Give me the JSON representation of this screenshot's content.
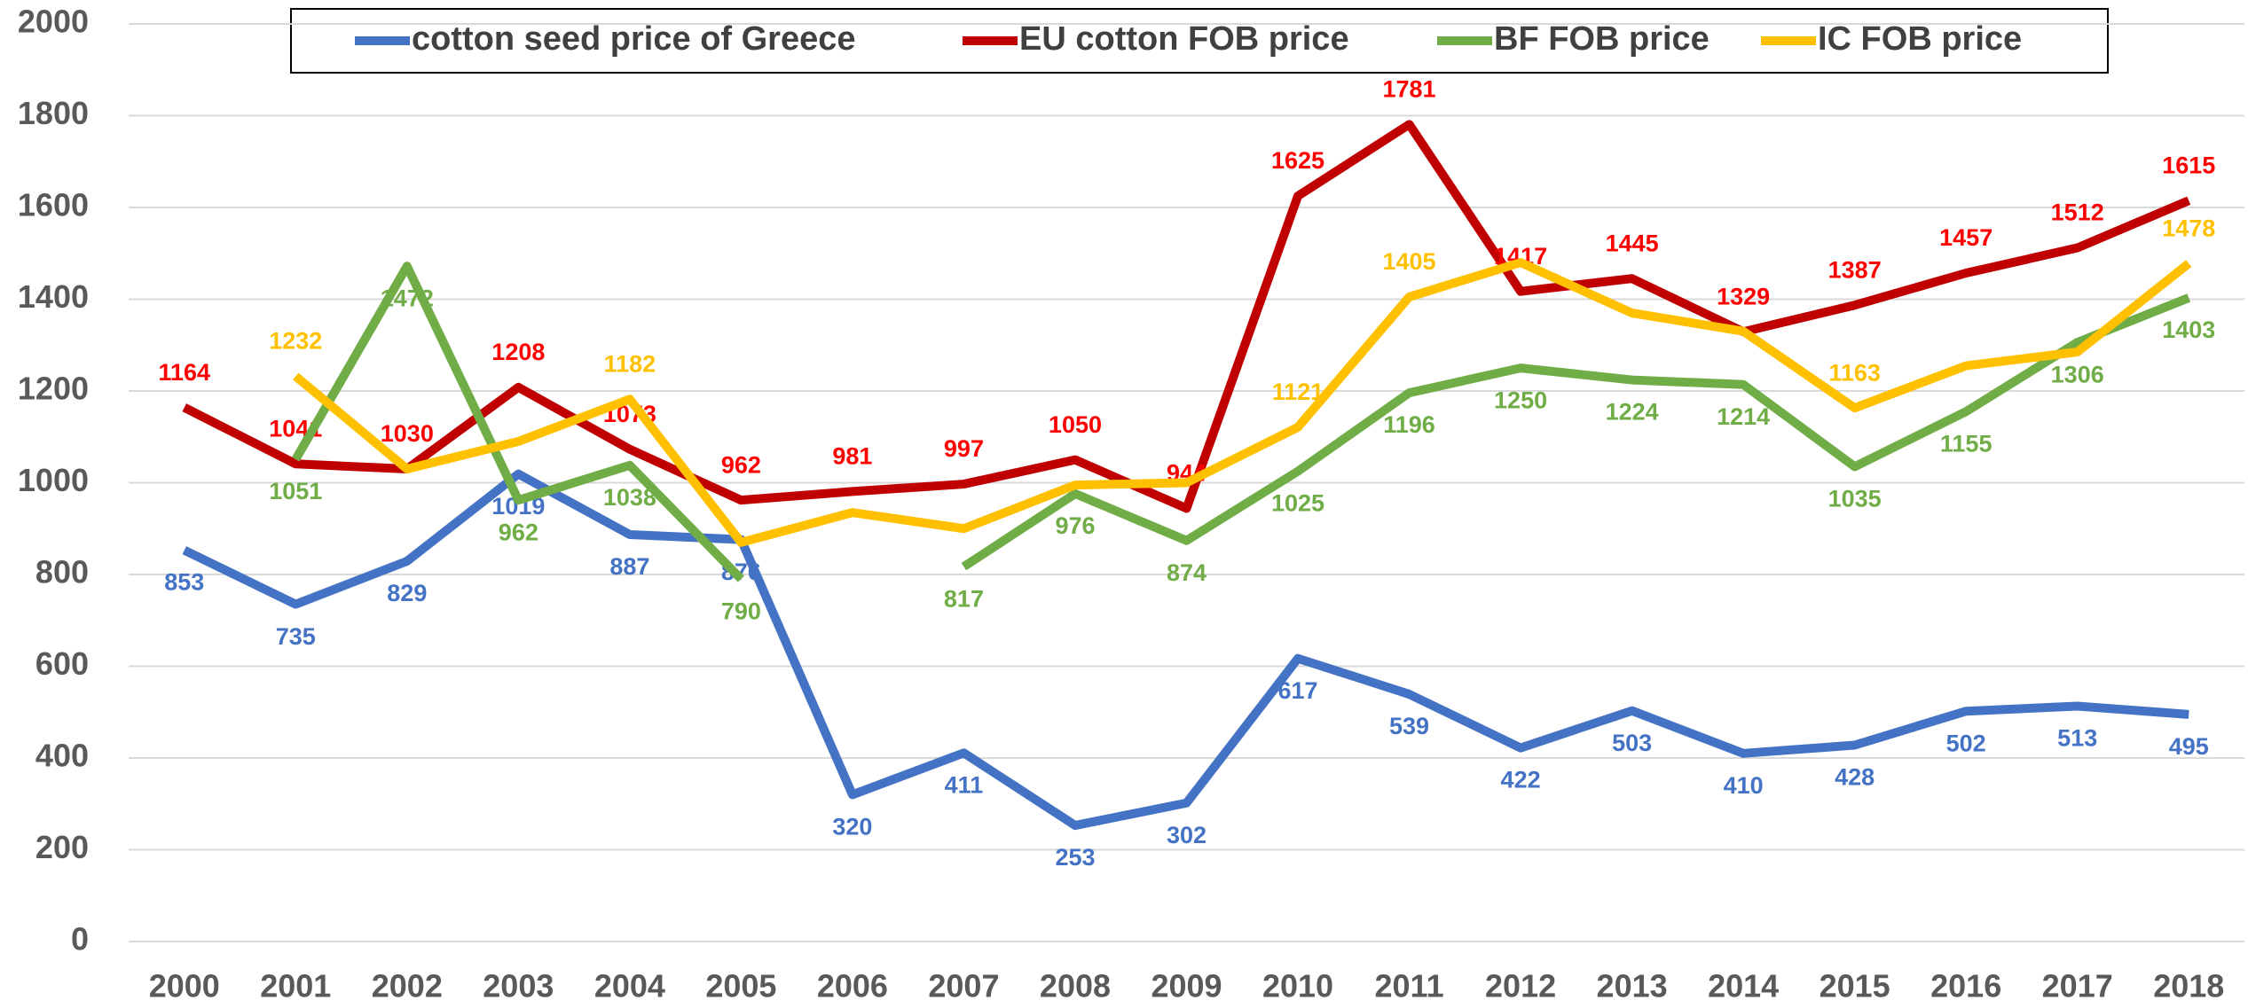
{
  "chart_data": {
    "type": "line",
    "categories": [
      "2000",
      "2001",
      "2002",
      "2003",
      "2004",
      "2005",
      "2006",
      "2007",
      "2008",
      "2009",
      "2010",
      "2011",
      "2012",
      "2013",
      "2014",
      "2015",
      "2016",
      "2017",
      "2018"
    ],
    "series": [
      {
        "name": "cotton seed price of Greece",
        "color": "#4472c4",
        "values": [
          853,
          735,
          829,
          1019,
          887,
          876,
          320,
          411,
          253,
          302,
          617,
          539,
          422,
          503,
          410,
          428,
          502,
          513,
          495
        ]
      },
      {
        "name": "EU cotton FOB price",
        "color": "#c00000",
        "label_color": "#ff0000",
        "values": [
          1164,
          1041,
          1030,
          1208,
          1073,
          962,
          981,
          997,
          1050,
          944,
          1625,
          1781,
          1417,
          1445,
          1329,
          1387,
          1457,
          1512,
          1615
        ]
      },
      {
        "name": "BF FOB price",
        "color": "#70ad47",
        "values": [
          null,
          1051,
          1472,
          962,
          1038,
          790,
          null,
          817,
          976,
          874,
          1025,
          1196,
          1250,
          1224,
          1214,
          1035,
          1155,
          1306,
          1403
        ]
      },
      {
        "name": "IC FOB price",
        "color": "#ffc000",
        "values": [
          null,
          1232,
          1030,
          1090,
          1182,
          870,
          935,
          900,
          995,
          1000,
          1121,
          1405,
          1480,
          1370,
          1330,
          1163,
          1255,
          1285,
          1478
        ],
        "value_labels": [
          null,
          "1232",
          null,
          null,
          "1182",
          null,
          null,
          null,
          null,
          null,
          "1121",
          "1405",
          null,
          null,
          null,
          "1163",
          null,
          null,
          "1478"
        ]
      }
    ],
    "ylim": [
      0,
      2000
    ],
    "yticks": [
      0,
      200,
      400,
      600,
      800,
      1000,
      1200,
      1400,
      1600,
      1800,
      2000
    ],
    "grid": true,
    "legend": "top"
  }
}
